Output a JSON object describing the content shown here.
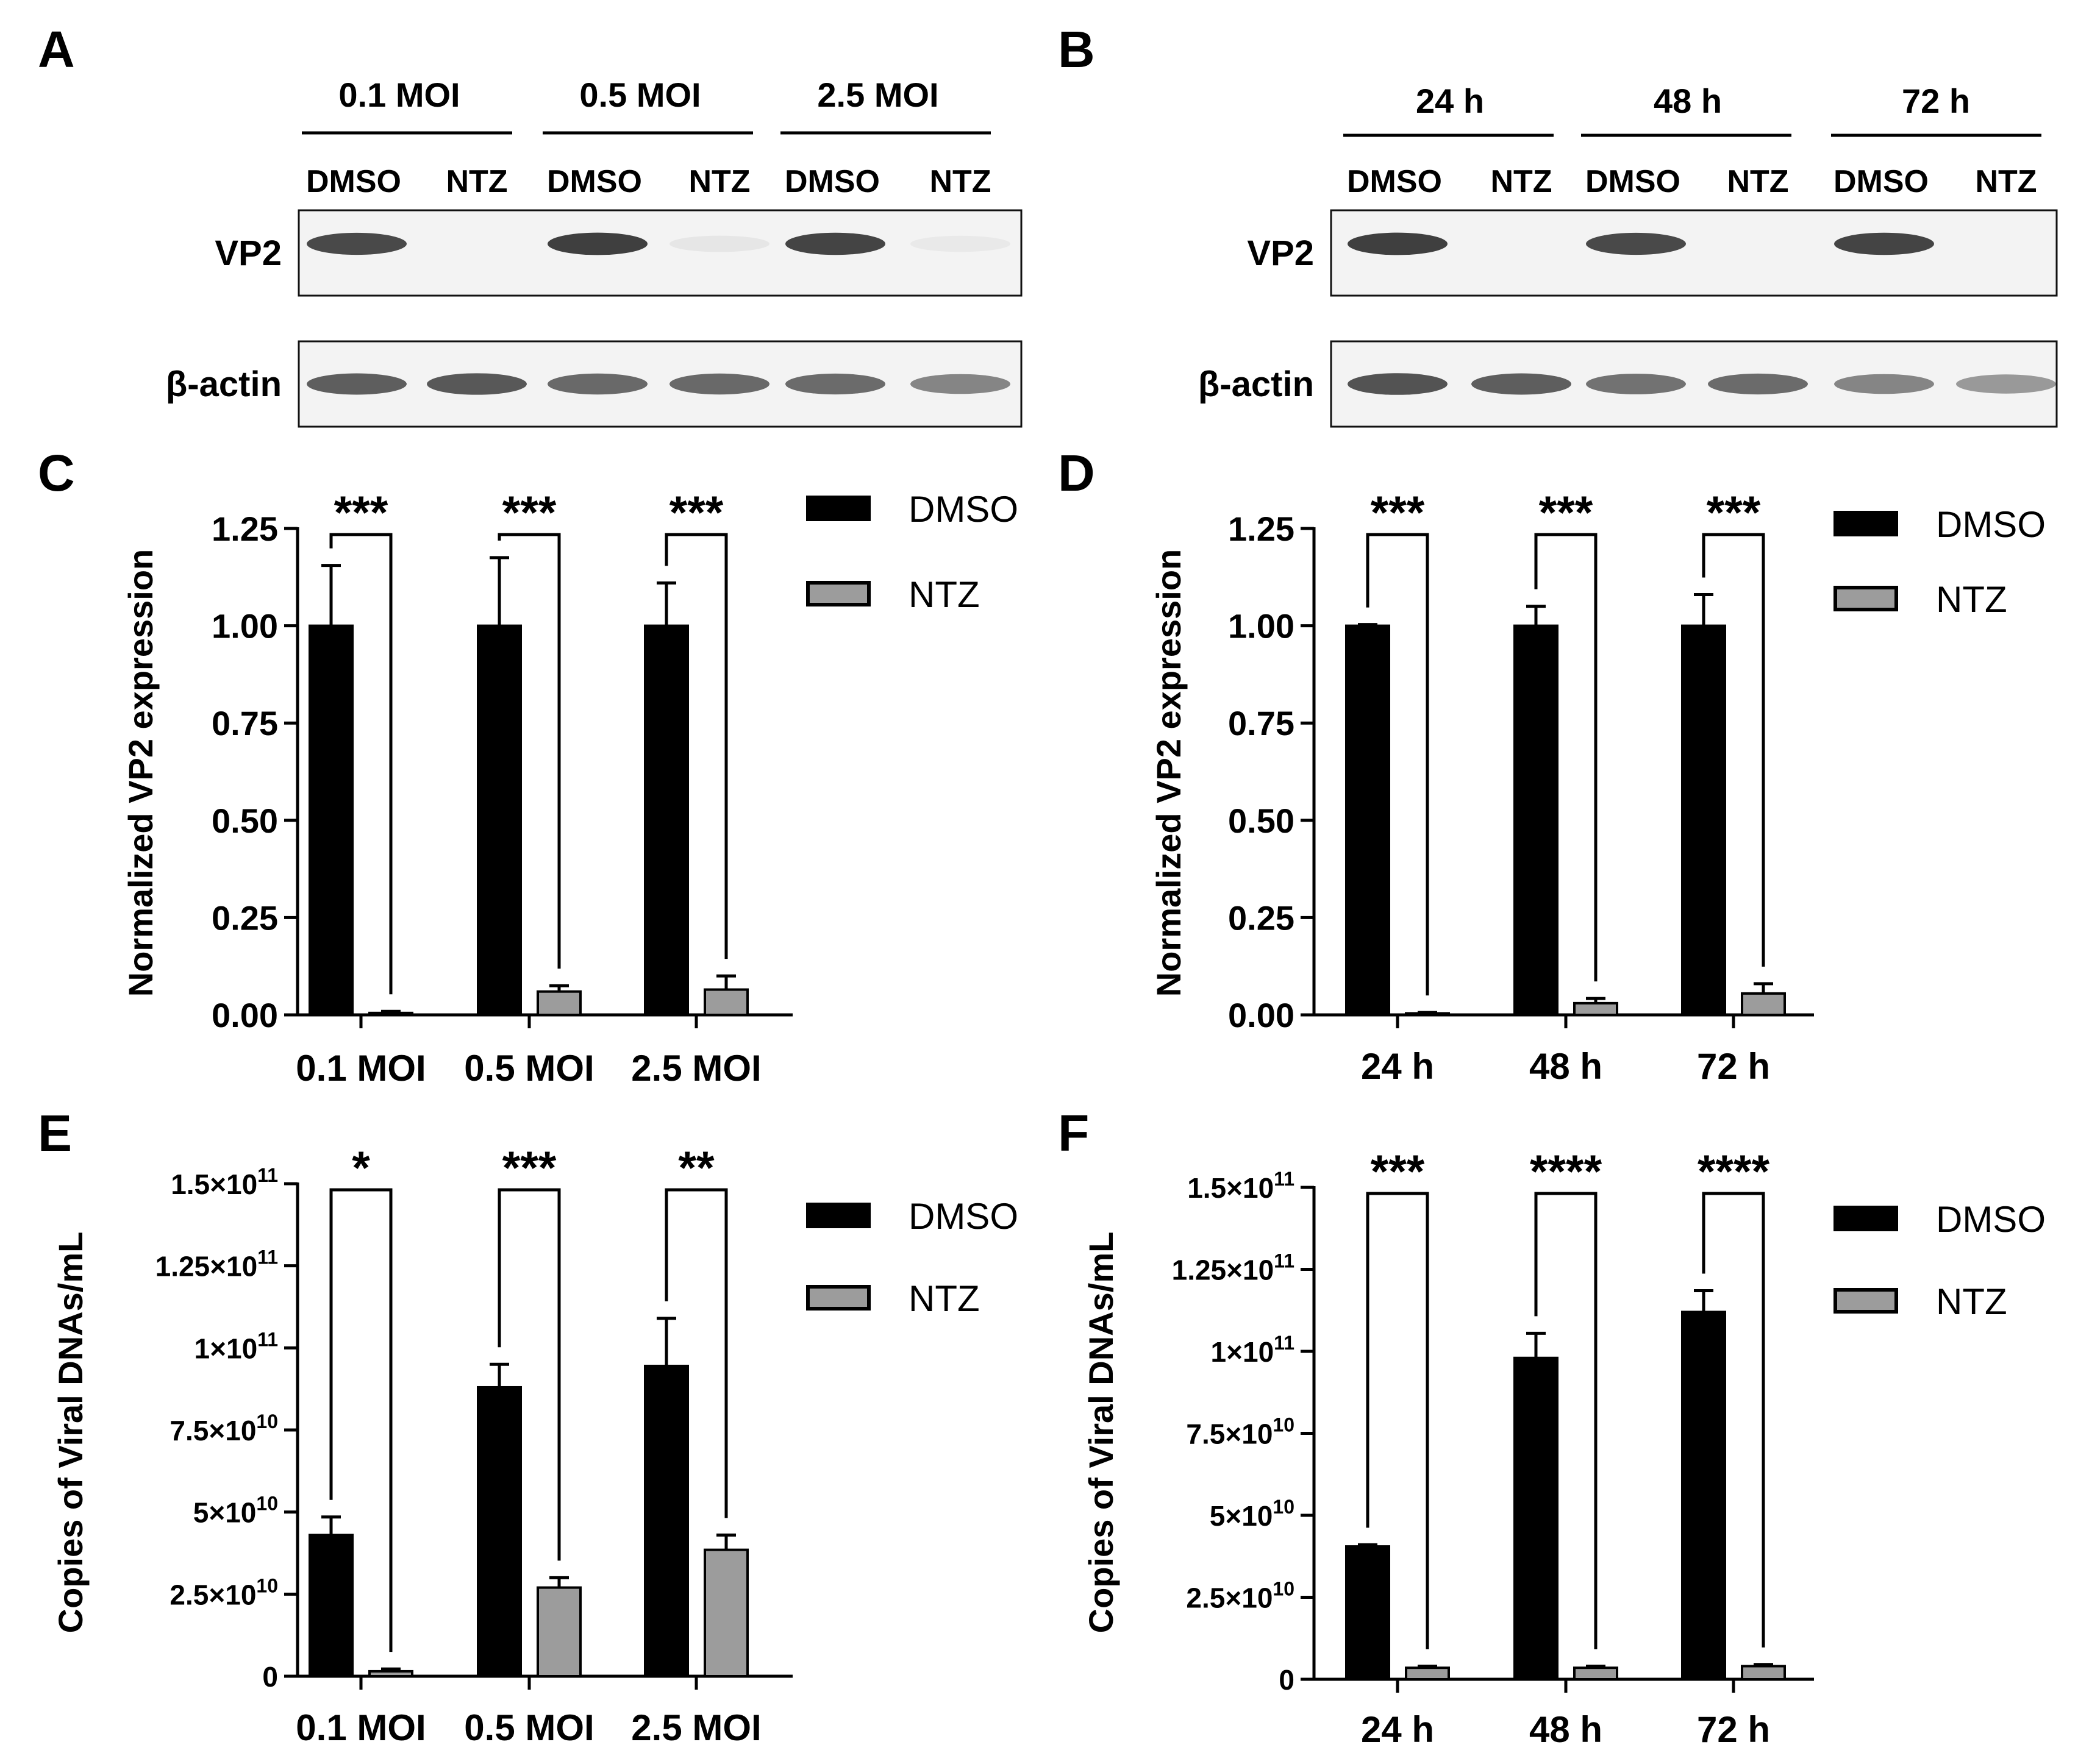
{
  "figure": {
    "panels": {
      "A": "A",
      "B": "B",
      "C": "C",
      "D": "D",
      "E": "E",
      "F": "F"
    }
  },
  "colors": {
    "dmso": "#000000",
    "ntz": "#9c9c9c",
    "axis": "#000000"
  },
  "blots": [
    {
      "panel": "A",
      "groups": [
        "0.1 MOI",
        "0.5 MOI",
        "2.5 MOI"
      ],
      "lanes": [
        "DMSO",
        "NTZ",
        "DMSO",
        "NTZ",
        "DMSO",
        "NTZ"
      ],
      "rows": [
        {
          "label": "VP2",
          "intensities": [
            0.85,
            0.0,
            0.9,
            0.06,
            0.88,
            0.05
          ]
        },
        {
          "label": "β-actin",
          "intensities": [
            0.75,
            0.78,
            0.7,
            0.7,
            0.68,
            0.55
          ]
        }
      ]
    },
    {
      "panel": "B",
      "groups": [
        "24 h",
        "48 h",
        "72 h"
      ],
      "lanes": [
        "DMSO",
        "NTZ",
        "DMSO",
        "NTZ",
        "DMSO",
        "NTZ"
      ],
      "rows": [
        {
          "label": "VP2",
          "intensities": [
            0.9,
            0.0,
            0.85,
            0.0,
            0.88,
            0.0
          ]
        },
        {
          "label": "β-actin",
          "intensities": [
            0.8,
            0.75,
            0.65,
            0.68,
            0.55,
            0.45
          ]
        }
      ]
    }
  ],
  "chart_data": [
    {
      "panel": "C",
      "type": "bar",
      "ylabel": "Normalized VP2 expression",
      "categories": [
        "0.1 MOI",
        "0.5 MOI",
        "2.5 MOI"
      ],
      "series": [
        {
          "name": "DMSO",
          "values": [
            1.0,
            1.0,
            1.0
          ],
          "errors": [
            0.155,
            0.175,
            0.11
          ]
        },
        {
          "name": "NTZ",
          "values": [
            0.005,
            0.06,
            0.065
          ],
          "errors": [
            0.004,
            0.015,
            0.035
          ]
        }
      ],
      "ylim": [
        0,
        1.25
      ],
      "yticks": [
        0,
        0.25,
        0.5,
        0.75,
        1.0,
        1.25
      ],
      "ytick_labels": [
        "0.00",
        "0.25",
        "0.50",
        "0.75",
        "1.00",
        "1.25"
      ],
      "significance": [
        "***",
        "***",
        "***"
      ],
      "legend": [
        "DMSO",
        "NTZ"
      ]
    },
    {
      "panel": "D",
      "type": "bar",
      "ylabel": "Normalized VP2 expression",
      "categories": [
        "24 h",
        "48 h",
        "72 h"
      ],
      "series": [
        {
          "name": "DMSO",
          "values": [
            1.0,
            1.0,
            1.0
          ],
          "errors": [
            0.003,
            0.05,
            0.08
          ]
        },
        {
          "name": "NTZ",
          "values": [
            0.004,
            0.03,
            0.055
          ],
          "errors": [
            0.002,
            0.012,
            0.025
          ]
        }
      ],
      "ylim": [
        0,
        1.25
      ],
      "yticks": [
        0,
        0.25,
        0.5,
        0.75,
        1.0,
        1.25
      ],
      "ytick_labels": [
        "0.00",
        "0.25",
        "0.50",
        "0.75",
        "1.00",
        "1.25"
      ],
      "significance": [
        "***",
        "***",
        "***"
      ],
      "legend": [
        "DMSO",
        "NTZ"
      ]
    },
    {
      "panel": "E",
      "type": "bar",
      "ylabel": "Copies of Viral DNAs/mL",
      "categories": [
        "0.1 MOI",
        "0.5 MOI",
        "2.5 MOI"
      ],
      "series": [
        {
          "name": "DMSO",
          "values": [
            43000000000.0,
            88000000000.0,
            94500000000.0
          ],
          "errors": [
            5500000000.0,
            7000000000.0,
            14500000000.0
          ]
        },
        {
          "name": "NTZ",
          "values": [
            1500000000.0,
            27000000000.0,
            38500000000.0
          ],
          "errors": [
            700000000.0,
            3000000000.0,
            4500000000.0
          ]
        }
      ],
      "ylim": [
        0,
        150000000000.0
      ],
      "yticks": [
        0,
        25000000000.0,
        50000000000.0,
        75000000000.0,
        100000000000.0,
        125000000000.0,
        150000000000.0
      ],
      "ytick_labels": [
        {
          "m": "0",
          "e": ""
        },
        {
          "m": "2.5×10",
          "e": "10"
        },
        {
          "m": "5×10",
          "e": "10"
        },
        {
          "m": "7.5×10",
          "e": "10"
        },
        {
          "m": "1×10",
          "e": "11"
        },
        {
          "m": "1.25×10",
          "e": "11"
        },
        {
          "m": "1.5×10",
          "e": "11"
        }
      ],
      "significance": [
        "*",
        "***",
        "**"
      ],
      "legend": [
        "DMSO",
        "NTZ"
      ]
    },
    {
      "panel": "F",
      "type": "bar",
      "ylabel": "Copies of Viral DNAs/mL",
      "categories": [
        "24 h",
        "48 h",
        "72 h"
      ],
      "series": [
        {
          "name": "DMSO",
          "values": [
            40500000000.0,
            98000000000.0,
            112000000000.0
          ],
          "errors": [
            500000000.0,
            7500000000.0,
            6500000000.0
          ]
        },
        {
          "name": "NTZ",
          "values": [
            3500000000.0,
            3500000000.0,
            4000000000.0
          ],
          "errors": [
            500000000.0,
            500000000.0,
            500000000.0
          ]
        }
      ],
      "ylim": [
        0,
        150000000000.0
      ],
      "yticks": [
        0,
        25000000000.0,
        50000000000.0,
        75000000000.0,
        100000000000.0,
        125000000000.0,
        150000000000.0
      ],
      "ytick_labels": [
        {
          "m": "0",
          "e": ""
        },
        {
          "m": "2.5×10",
          "e": "10"
        },
        {
          "m": "5×10",
          "e": "10"
        },
        {
          "m": "7.5×10",
          "e": "10"
        },
        {
          "m": "1×10",
          "e": "11"
        },
        {
          "m": "1.25×10",
          "e": "11"
        },
        {
          "m": "1.5×10",
          "e": "11"
        }
      ],
      "significance": [
        "***",
        "****",
        "****"
      ],
      "legend": [
        "DMSO",
        "NTZ"
      ]
    }
  ]
}
